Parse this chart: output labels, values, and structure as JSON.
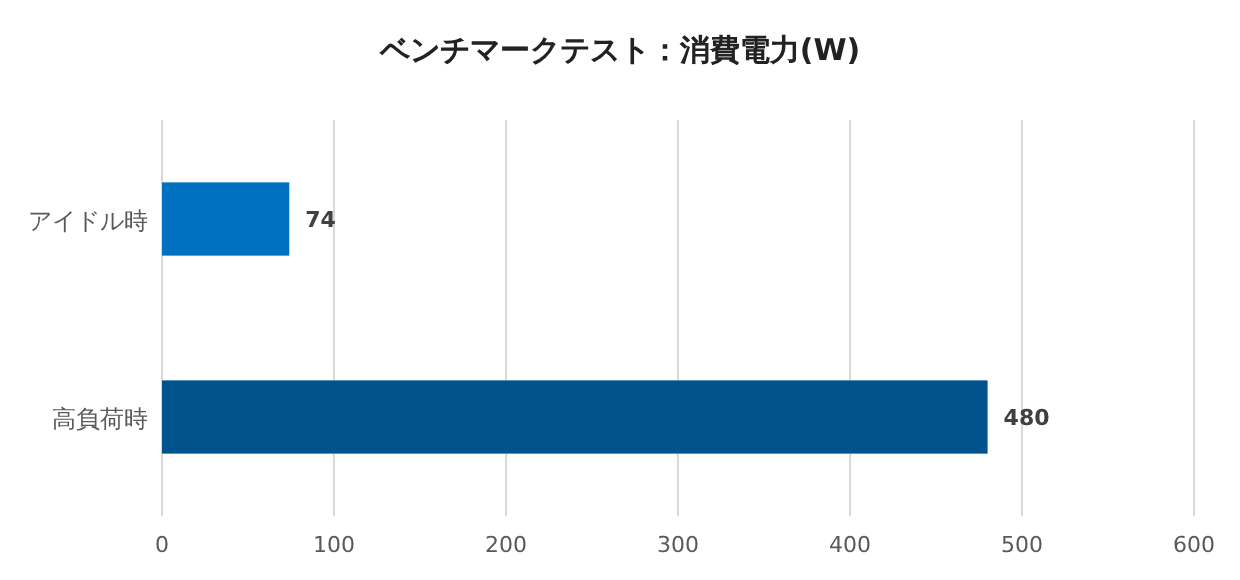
{
  "chart_data": {
    "type": "bar",
    "orientation": "horizontal",
    "title": "ベンチマークテスト：消費電力(W)",
    "categories": [
      "アイドル時",
      "高負荷時"
    ],
    "values": [
      74,
      480
    ],
    "colors": [
      "#0070c0",
      "#00538c"
    ],
    "xlim": [
      0,
      600
    ],
    "xticks": [
      0,
      100,
      200,
      300,
      400,
      500,
      600
    ],
    "grid": "x",
    "data_labels": true
  }
}
